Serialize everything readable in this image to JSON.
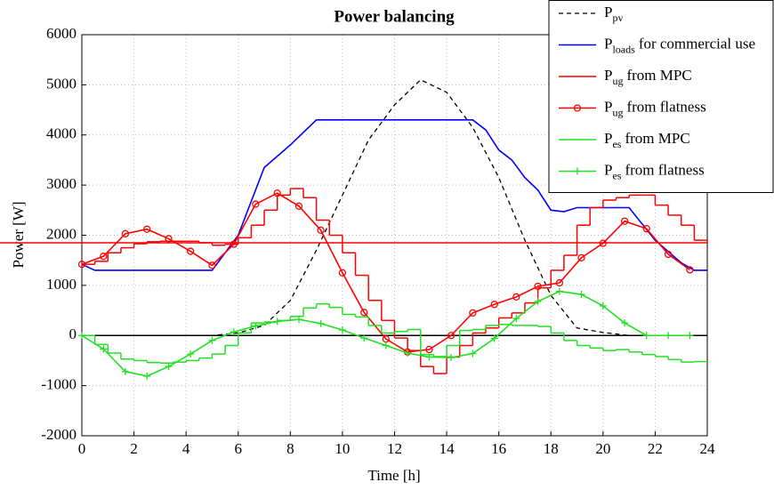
{
  "chart_data": {
    "type": "line",
    "title": "Power balancing",
    "x_label": "Time [h]",
    "y_label": "Power [W]",
    "xlim": [
      0,
      24
    ],
    "xticks": [
      0,
      2,
      4,
      6,
      8,
      10,
      12,
      14,
      16,
      18,
      20,
      22,
      24
    ],
    "ylim": [
      -2000,
      6000
    ],
    "yticks": [
      -2000,
      -1000,
      0,
      1000,
      2000,
      3000,
      4000,
      5000,
      6000
    ],
    "grid": true,
    "legend": "upper right",
    "series": [
      {
        "name": "P",
        "name_sub": "pv",
        "color": "#000000",
        "dash": true,
        "x": [
          0,
          1,
          2,
          3,
          4,
          5,
          6,
          7,
          8,
          9,
          10,
          11,
          12,
          13,
          14,
          15,
          16,
          17,
          18,
          19,
          20,
          21,
          22,
          23,
          24
        ],
        "values": [
          0,
          0,
          0,
          0,
          0,
          0,
          50,
          200,
          700,
          1700,
          2800,
          3900,
          4600,
          5100,
          4850,
          4150,
          3150,
          1900,
          800,
          150,
          60,
          0,
          0,
          0,
          0
        ]
      },
      {
        "name": "P",
        "name_sub": "loads",
        "name_rest": "for commercial use",
        "color": "#0000ff",
        "x": [
          0,
          0.5,
          5,
          6,
          7,
          8,
          9,
          15,
          15.5,
          16,
          16.5,
          17,
          17.5,
          18,
          18.5,
          19,
          21,
          22,
          23,
          23.5,
          24
        ],
        "values": [
          1420,
          1300,
          1300,
          2000,
          3350,
          3800,
          4300,
          4300,
          4100,
          3700,
          3500,
          3150,
          2900,
          2500,
          2470,
          2550,
          2550,
          1900,
          1450,
          1300,
          1300
        ]
      },
      {
        "name": "P",
        "name_sub": "ug",
        "name_rest": "from MPC",
        "color": "#ff0000",
        "drawstyle": "steps",
        "bins": [
          0,
          0.5,
          1,
          1.5,
          2,
          2.5,
          3,
          3.5,
          4,
          4.5,
          5,
          5.5,
          6,
          6.5,
          7,
          7.5,
          8,
          8.5,
          9,
          9.5,
          10,
          10.5,
          11,
          11.5,
          12,
          12.5,
          13,
          13.5,
          14,
          14.5,
          15,
          15.5,
          16,
          16.5,
          17,
          17.5,
          18,
          18.5,
          19,
          19.5,
          20,
          20.5,
          21,
          21.5,
          22,
          22.5,
          23,
          23.5,
          24
        ],
        "values": [
          1420,
          1480,
          1650,
          1750,
          1830,
          1870,
          1880,
          1880,
          1880,
          1850,
          1800,
          1820,
          1950,
          2200,
          2500,
          2800,
          2930,
          2750,
          2300,
          2000,
          1650,
          1200,
          700,
          300,
          -50,
          -300,
          -620,
          -760,
          -430,
          -200,
          50,
          150,
          350,
          450,
          650,
          950,
          1300,
          1600,
          2200,
          2550,
          2700,
          2750,
          2800,
          2800,
          2600,
          2400,
          2200,
          1900,
          1850
        ]
      },
      {
        "name": "P",
        "name_sub": "ug",
        "name_rest": "from flatness",
        "color": "#ff0000",
        "marker": "o",
        "x": [
          0,
          0.83,
          1.67,
          2.5,
          3.33,
          4.17,
          5,
          5.83,
          6.67,
          7.5,
          8.33,
          9.17,
          10,
          10.83,
          11.67,
          12.5,
          13.33,
          14.17,
          15,
          15.83,
          16.67,
          17.5,
          18.33,
          19.17,
          20,
          20.83,
          21.67,
          22.5,
          23.33
        ],
        "values": [
          1420,
          1580,
          2030,
          2120,
          1930,
          1680,
          1400,
          1820,
          2620,
          2840,
          2580,
          2100,
          1250,
          460,
          -70,
          -330,
          -280,
          0,
          450,
          620,
          770,
          980,
          1050,
          1550,
          1840,
          2280,
          2130,
          1620,
          1310
        ]
      },
      {
        "name": "P",
        "name_sub": "es",
        "name_rest": "from MPC",
        "color": "#22e022",
        "drawstyle": "steps",
        "bins": [
          0,
          0.5,
          1,
          1.5,
          2,
          2.5,
          3,
          3.5,
          4,
          4.5,
          5,
          5.5,
          6,
          6.5,
          7,
          7.5,
          8,
          8.5,
          9,
          9.5,
          10,
          10.5,
          11,
          11.5,
          12,
          12.5,
          13,
          13.5,
          14,
          14.5,
          15,
          15.5,
          16,
          16.5,
          17,
          17.5,
          18,
          18.5,
          19,
          19.5,
          20,
          20.5,
          21,
          21.5,
          22,
          22.5,
          23,
          23.5,
          24
        ],
        "values": [
          0,
          -180,
          -350,
          -470,
          -500,
          -540,
          -550,
          -530,
          -500,
          -450,
          -370,
          -200,
          50,
          250,
          270,
          300,
          380,
          550,
          630,
          560,
          420,
          370,
          200,
          50,
          80,
          120,
          -380,
          -420,
          -200,
          100,
          120,
          200,
          220,
          200,
          200,
          180,
          50,
          -100,
          -200,
          -250,
          -300,
          -280,
          -330,
          -380,
          -420,
          -480,
          -530,
          -520
        ]
      },
      {
        "name": "P",
        "name_sub": "es",
        "name_rest": "from flatness",
        "color": "#22e022",
        "marker": "+",
        "x": [
          0,
          0.83,
          1.67,
          2.5,
          3.33,
          4.17,
          5,
          5.83,
          6.67,
          7.5,
          8.33,
          9.17,
          10,
          10.83,
          11.67,
          12.5,
          13.33,
          14.17,
          15,
          15.83,
          16.67,
          17.5,
          18.33,
          19.17,
          20,
          20.83,
          21.67,
          22.5,
          23.33
        ],
        "values": [
          0,
          -270,
          -720,
          -810,
          -620,
          -370,
          -100,
          70,
          190,
          280,
          320,
          240,
          110,
          -50,
          -200,
          -350,
          -430,
          -440,
          -360,
          -60,
          340,
          680,
          880,
          820,
          590,
          250,
          0,
          0,
          0
        ]
      }
    ]
  }
}
